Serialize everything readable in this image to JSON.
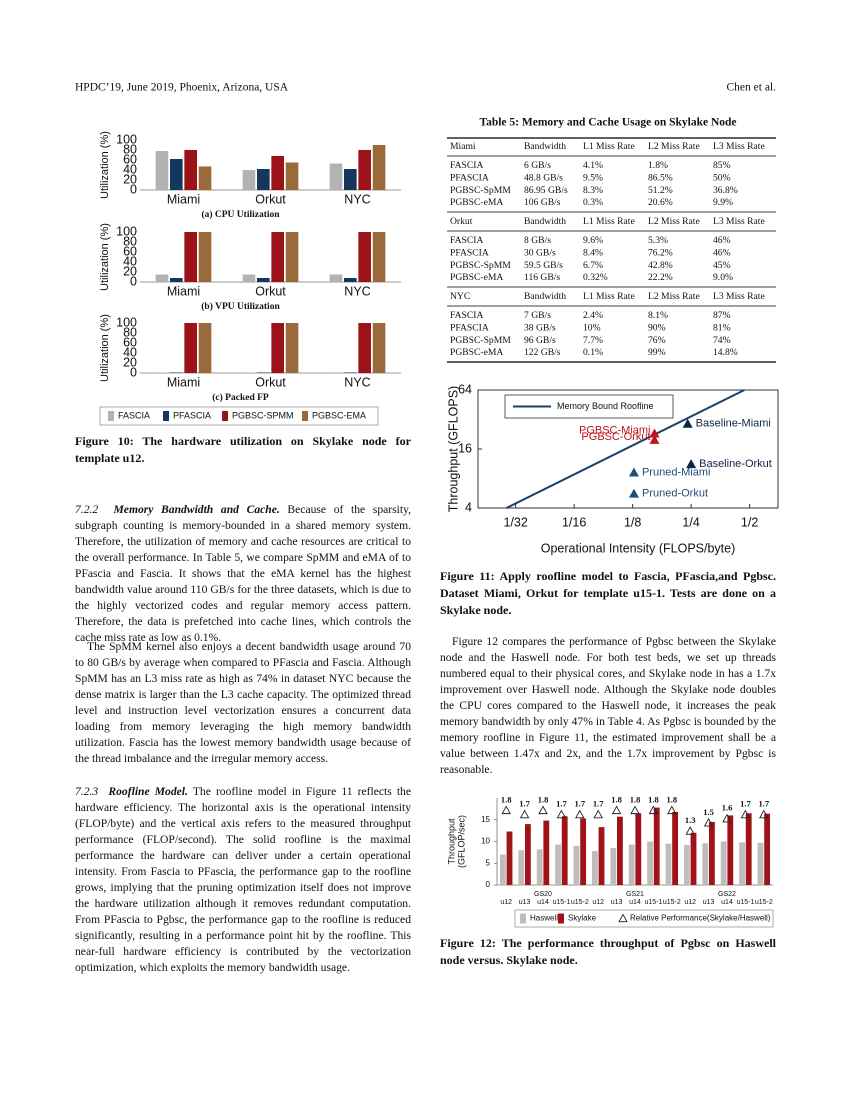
{
  "header": {
    "left": "HPDC’19, June 2019, Phoenix, Arizona, USA",
    "right": "Chen et al."
  },
  "body_left": [
    {
      "number": "7.2.2",
      "heading": "Memory Bandwidth and Cache.",
      "text": "Because of the sparsity, subgraph counting is memory-bounded in a shared memory system. Therefore, the utilization of memory and cache resources are critical to the overall performance. In Table 5, we compare SpMM and eMA of to PFascia and Fascia. It shows that the eMA kernel has the highest bandwidth value around 110 GB/s for the three datasets, which is due to the highly vectorized codes and regular memory access pattern. Therefore, the data is prefetched into cache lines, which controls the cache miss rate as low as 0.1%."
    },
    {
      "text": "The SpMM kernel also enjoys a decent bandwidth usage around 70 to 80 GB/s by average when compared to PFascia and Fascia. Although SpMM has an L3 miss rate as high as 74% in dataset NYC because the dense matrix is larger than the L3 cache capacity. The optimized thread level and instruction level vectorization ensures a concurrent data loading from memory leveraging the high memory bandwidth utilization. Fascia has the lowest memory bandwidth usage because of the thread imbalance and the irregular memory access."
    },
    {
      "number": "7.2.3",
      "heading": "Roofline Model.",
      "text": "The roofline model in Figure 11 reflects the hardware efficiency. The horizontal axis is the operational intensity (FLOP/byte) and the vertical axis refers to the measured throughput performance (FLOP/second). The solid roofline is the maximal performance the hardware can deliver under a certain operational intensity. From Fascia to PFascia, the performance gap to the roofline grows, implying that the pruning optimization itself does not improve the hardware utilization although it removes redundant computation. From PFascia to Pgbsc, the performance gap to the roofline is reduced significantly, resulting in a performance point hit by the roofline. This near-full hardware efficiency is contributed by the vectorization optimization, which exploits the memory bandwidth usage."
    }
  ],
  "body_right": "Figure 12 compares the performance of Pgbsc between the Skylake node and the Haswell node. For both test beds, we set up threads numbered equal to their physical cores, and Skylake node in has a 1.7x improvement over Haswell node. Although the Skylake node doubles the CPU cores compared to the Haswell node, it increases the peak memory bandwidth by only 47% in Table 4. As Pgbsc is bounded by the memory roofline in Figure 11, the estimated improvement shall be a value between 1.47x and 2x, and the 1.7x improvement by Pgbsc is reasonable.",
  "table": {
    "title": "Table 5: Memory and Cache Usage on Skylake Node",
    "blocks": [
      {
        "header": [
          "Miami",
          "Bandwidth",
          "L1 Miss Rate",
          "L2 Miss Rate",
          "L3 Miss Rate"
        ],
        "rows": [
          [
            "FASCIA",
            "6 GB/s",
            "4.1%",
            "1.8%",
            "85%"
          ],
          [
            "PFASCIA",
            "48.8 GB/s",
            "9.5%",
            "86.5%",
            "50%"
          ],
          [
            "PGBSC-SpMM",
            "86.95 GB/s",
            "8.3%",
            "51.2%",
            "36.8%"
          ],
          [
            "PGBSC-eMA",
            "106 GB/s",
            "0.3%",
            "20.6%",
            "9.9%"
          ]
        ]
      },
      {
        "header": [
          "Orkut",
          "Bandwidth",
          "L1 Miss Rate",
          "L2 Miss Rate",
          "L3 Miss Rate"
        ],
        "rows": [
          [
            "FASCIA",
            "8 GB/s",
            "9.6%",
            "5.3%",
            "46%"
          ],
          [
            "PFASCIA",
            "30 GB/s",
            "8.4%",
            "76.2%",
            "46%"
          ],
          [
            "PGBSC-SpMM",
            "59.5 GB/s",
            "6.7%",
            "42.8%",
            "45%"
          ],
          [
            "PGBSC-eMA",
            "116 GB/s",
            "0.32%",
            "22.2%",
            "9.0%"
          ]
        ]
      },
      {
        "header": [
          "NYC",
          "Bandwidth",
          "L1 Miss Rate",
          "L2 Miss Rate",
          "L3 Miss Rate"
        ],
        "rows": [
          [
            "FASCIA",
            "7 GB/s",
            "2.4%",
            "8.1%",
            "87%"
          ],
          [
            "PFASCIA",
            "38 GB/s",
            "10%",
            "90%",
            "81%"
          ],
          [
            "PGBSC-SpMM",
            "96 GB/s",
            "7.7%",
            "76%",
            "74%"
          ],
          [
            "PGBSC-eMA",
            "122 GB/s",
            "0.1%",
            "99%",
            "14.8%"
          ]
        ]
      }
    ]
  },
  "chart_data": [
    {
      "type": "bar",
      "title": "(a) CPU Utilization",
      "y_label": "Utilization (%)",
      "caption": "Figure 10: The hardware utilization on Skylake node for template u12.",
      "categories": [
        "Miami",
        "Orkut",
        "NYC"
      ],
      "ylim": [
        0,
        100
      ],
      "yticks": [
        0,
        20,
        40,
        60,
        80,
        100
      ],
      "series": [
        {
          "name": "FASCIA",
          "color": "#b3b3b3",
          "values": [
            78,
            40,
            53
          ]
        },
        {
          "name": "PFASCIA",
          "color": "#15375e",
          "values": [
            62,
            42,
            42
          ]
        },
        {
          "name": "PGBSC-SPMM",
          "color": "#9c1219",
          "values": [
            80,
            68,
            80
          ]
        },
        {
          "name": "PGBSC-EMA",
          "color": "#9a6a3a",
          "values": [
            47,
            55,
            90
          ]
        }
      ]
    },
    {
      "type": "bar",
      "title": "(b) VPU Utilization",
      "y_label": "Utilization (%)",
      "categories": [
        "Miami",
        "Orkut",
        "NYC"
      ],
      "ylim": [
        0,
        100
      ],
      "yticks": [
        0,
        20,
        40,
        60,
        80,
        100
      ],
      "series": [
        {
          "color": "#b3b3b3",
          "values": [
            15,
            15,
            15
          ]
        },
        {
          "color": "#15375e",
          "values": [
            8,
            8,
            8
          ]
        },
        {
          "color": "#9c1219",
          "values": [
            100,
            100,
            100
          ]
        },
        {
          "color": "#9a6a3a",
          "values": [
            100,
            100,
            100
          ]
        }
      ]
    },
    {
      "type": "bar",
      "title": "(c) Packed FP",
      "y_label": "Utilization (%)",
      "categories": [
        "Miami",
        "Orkut",
        "NYC"
      ],
      "ylim": [
        0,
        100
      ],
      "yticks": [
        0,
        20,
        40,
        60,
        80,
        100
      ],
      "series": [
        {
          "color": "#b3b3b3",
          "values": [
            1,
            1,
            1
          ]
        },
        {
          "color": "#15375e",
          "values": [
            1,
            1,
            1
          ]
        },
        {
          "color": "#9c1219",
          "values": [
            100,
            100,
            100
          ]
        },
        {
          "color": "#9a6a3a",
          "values": [
            100,
            100,
            100
          ]
        }
      ]
    },
    {
      "type": "scatter",
      "x_label": "Operational Intensity (FLOPS/byte)",
      "y_label": "Throughput (GFLOPS)",
      "caption": "Figure 11: Apply roofline model to Fascia, PFascia,and Pgbsc. Dataset Miami, Orkut for template u15-1. Tests are done on a Skylake node.",
      "xscale": "log",
      "yscale": "log",
      "xlim": [
        0.02,
        0.7
      ],
      "ylim": [
        4,
        64
      ],
      "xticks": [
        {
          "value": 0.03125,
          "label": "1/32"
        },
        {
          "value": 0.0625,
          "label": "1/16"
        },
        {
          "value": 0.125,
          "label": "1/8"
        },
        {
          "value": 0.25,
          "label": "1/4"
        },
        {
          "value": 0.5,
          "label": "1/2"
        }
      ],
      "yticks": [
        4,
        16,
        64
      ],
      "series": [
        {
          "name": "Memory Bound Roofline",
          "color": "#17406b",
          "x": [
            0.028,
            0.47
          ],
          "values": [
            4,
            64
          ]
        },
        {
          "name": "Baseline-Miami",
          "color": "#0f2440",
          "x": [
            0.24
          ],
          "values": [
            29
          ]
        },
        {
          "name": "Baseline-Orkut",
          "color": "#0f2440",
          "x": [
            0.25
          ],
          "values": [
            11.2
          ]
        },
        {
          "name": "Pruned-Miami",
          "color": "#1f4e79",
          "x": [
            0.127
          ],
          "values": [
            9.2
          ]
        },
        {
          "name": "Pruned-Orkut",
          "color": "#1f4e79",
          "x": [
            0.127
          ],
          "values": [
            5.6
          ]
        },
        {
          "name": "PGBSC-Miami",
          "color": "#c0121c",
          "x": [
            0.162
          ],
          "values": [
            23
          ]
        },
        {
          "name": "PGBSC-Orkut",
          "color": "#c0121c",
          "x": [
            0.162
          ],
          "values": [
            19.8
          ]
        }
      ]
    },
    {
      "type": "bar",
      "y_label": [
        "Throughput",
        "(GFLOP/sec)"
      ],
      "caption": "Figure 12: The performance throughput of Pgbsc on Haswell node versus. Skylake node.",
      "categories": [
        "u12",
        "u13",
        "u14",
        "u15-1",
        "u15-2",
        "u12",
        "u13",
        "u14",
        "u15-1",
        "u15-2",
        "u12",
        "u13",
        "u14",
        "u15-1",
        "u15-2"
      ],
      "groups": [
        "GS20",
        "GS21",
        "GS22"
      ],
      "ylim": [
        0,
        20
      ],
      "yticks": [
        0,
        5,
        10,
        15
      ],
      "y2lim": [
        0,
        2.1
      ],
      "series": [
        {
          "name": "Haswell",
          "color": "#bdbdbd",
          "values": [
            7,
            8,
            8.2,
            9.3,
            9,
            7.8,
            8.5,
            9.3,
            10,
            9.5,
            9.2,
            9.6,
            10,
            9.8,
            9.7
          ]
        },
        {
          "name": "Skylake",
          "color": "#a0131b",
          "values": [
            12.3,
            14,
            14.8,
            15.8,
            15.3,
            13.3,
            15.7,
            16.5,
            17.8,
            16.8,
            12,
            14.5,
            16,
            16.5,
            16.4
          ]
        },
        {
          "name": "Relative Performance(Skylake/Haswell)",
          "color": "#222222",
          "axis": "y2",
          "values": [
            1.8,
            1.7,
            1.8,
            1.7,
            1.7,
            1.7,
            1.8,
            1.8,
            1.8,
            1.8,
            1.3,
            1.5,
            1.6,
            1.7,
            1.7
          ]
        }
      ]
    }
  ]
}
